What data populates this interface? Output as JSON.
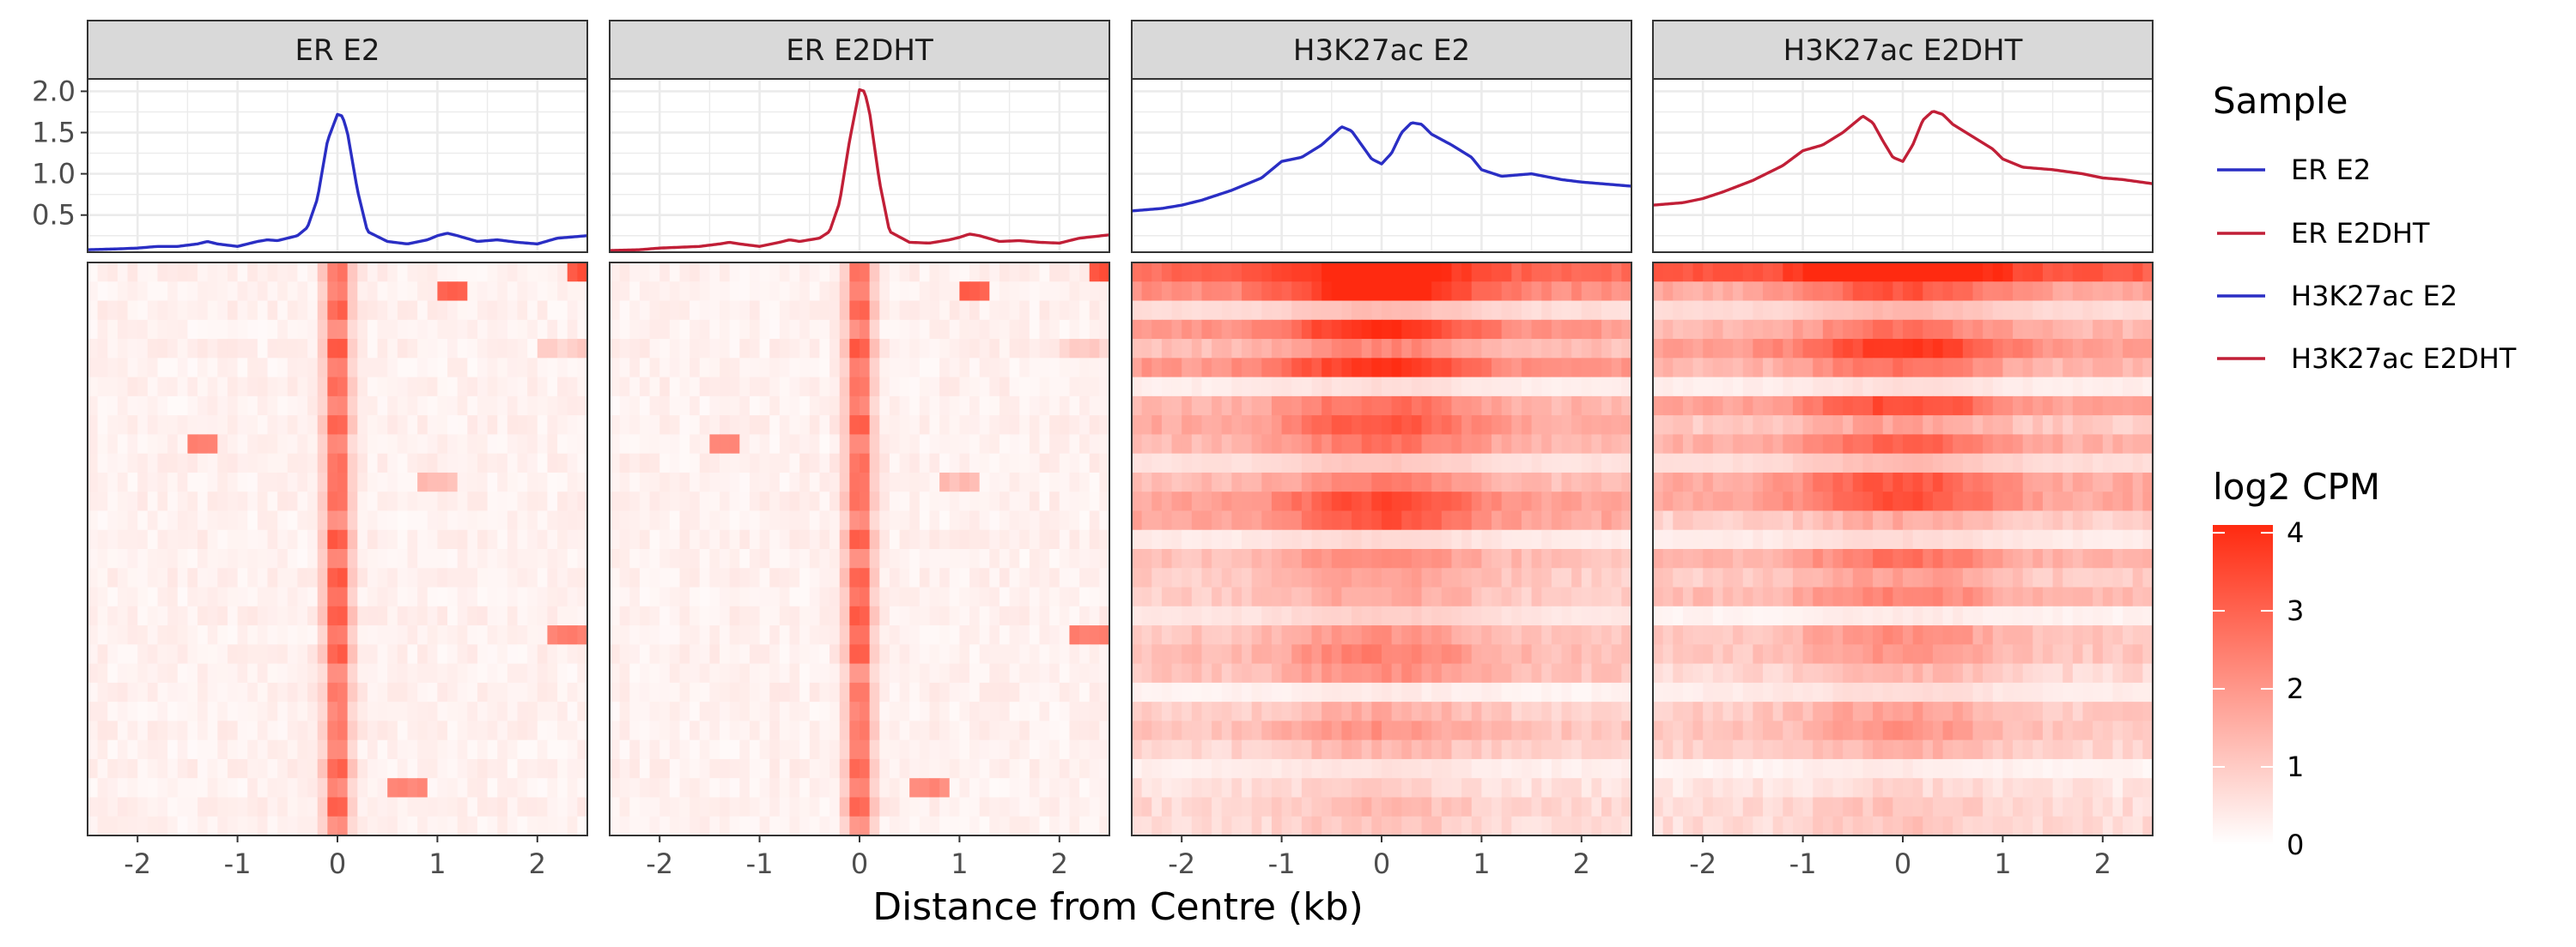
{
  "chart_data": {
    "type": "line+heatmap",
    "facets": [
      "ER E2",
      "ER E2DHT",
      "H3K27ac E2",
      "H3K27ac E2DHT"
    ],
    "x_axis": {
      "label": "Distance from Centre (kb)",
      "range": [
        -2.5,
        2.5
      ],
      "ticks": [
        -2,
        -1,
        0,
        1,
        2
      ],
      "tick_labels": [
        "-2",
        "-1",
        "0",
        "1",
        "2"
      ]
    },
    "profile_y_axis": {
      "range": [
        0.05,
        2.15
      ],
      "ticks": [
        0.5,
        1.0,
        1.5,
        2.0
      ],
      "tick_labels": [
        "0.5",
        "1.0",
        "1.5",
        "2.0"
      ]
    },
    "grid": true,
    "series": [
      {
        "name": "ER E2",
        "color": "#2a2ec4",
        "x": [
          -2.5,
          -2.2,
          -2.0,
          -1.8,
          -1.6,
          -1.4,
          -1.3,
          -1.2,
          -1.0,
          -0.8,
          -0.7,
          -0.6,
          -0.4,
          -0.3,
          -0.2,
          -0.1,
          0.0,
          0.05,
          0.1,
          0.2,
          0.3,
          0.5,
          0.7,
          0.9,
          1.0,
          1.1,
          1.2,
          1.4,
          1.6,
          1.8,
          2.0,
          2.2,
          2.5
        ],
        "y": [
          0.08,
          0.09,
          0.1,
          0.12,
          0.12,
          0.15,
          0.18,
          0.15,
          0.12,
          0.18,
          0.2,
          0.19,
          0.25,
          0.35,
          0.7,
          1.4,
          1.72,
          1.7,
          1.5,
          0.8,
          0.3,
          0.18,
          0.15,
          0.2,
          0.25,
          0.28,
          0.25,
          0.18,
          0.2,
          0.17,
          0.15,
          0.22,
          0.25
        ]
      },
      {
        "name": "ER E2DHT",
        "color": "#c11f37",
        "x": [
          -2.5,
          -2.2,
          -2.0,
          -1.8,
          -1.6,
          -1.4,
          -1.3,
          -1.2,
          -1.0,
          -0.8,
          -0.7,
          -0.6,
          -0.4,
          -0.3,
          -0.2,
          -0.1,
          0.0,
          0.05,
          0.1,
          0.2,
          0.3,
          0.5,
          0.7,
          0.9,
          1.0,
          1.1,
          1.2,
          1.4,
          1.6,
          1.8,
          2.0,
          2.2,
          2.5
        ],
        "y": [
          0.07,
          0.08,
          0.1,
          0.11,
          0.12,
          0.15,
          0.17,
          0.15,
          0.12,
          0.17,
          0.2,
          0.18,
          0.22,
          0.3,
          0.65,
          1.4,
          2.02,
          2.0,
          1.75,
          0.9,
          0.3,
          0.17,
          0.16,
          0.2,
          0.23,
          0.27,
          0.25,
          0.18,
          0.19,
          0.17,
          0.16,
          0.22,
          0.26
        ]
      },
      {
        "name": "H3K27ac E2",
        "color": "#2a2ec4",
        "x": [
          -2.5,
          -2.2,
          -2.0,
          -1.8,
          -1.5,
          -1.2,
          -1.0,
          -0.8,
          -0.6,
          -0.4,
          -0.3,
          -0.2,
          -0.1,
          0.0,
          0.1,
          0.2,
          0.3,
          0.4,
          0.5,
          0.7,
          0.9,
          1.0,
          1.2,
          1.5,
          1.8,
          2.0,
          2.2,
          2.5
        ],
        "y": [
          0.55,
          0.58,
          0.62,
          0.68,
          0.8,
          0.95,
          1.15,
          1.2,
          1.35,
          1.57,
          1.52,
          1.35,
          1.18,
          1.12,
          1.25,
          1.5,
          1.62,
          1.6,
          1.48,
          1.35,
          1.2,
          1.05,
          0.97,
          1.0,
          0.93,
          0.9,
          0.88,
          0.85
        ]
      },
      {
        "name": "H3K27ac E2DHT",
        "color": "#c11f37",
        "x": [
          -2.5,
          -2.2,
          -2.0,
          -1.8,
          -1.5,
          -1.2,
          -1.0,
          -0.8,
          -0.6,
          -0.4,
          -0.3,
          -0.2,
          -0.1,
          0.0,
          0.1,
          0.2,
          0.3,
          0.4,
          0.5,
          0.7,
          0.9,
          1.0,
          1.2,
          1.5,
          1.8,
          2.0,
          2.2,
          2.5
        ],
        "y": [
          0.62,
          0.65,
          0.7,
          0.78,
          0.92,
          1.1,
          1.28,
          1.35,
          1.5,
          1.7,
          1.62,
          1.4,
          1.2,
          1.15,
          1.35,
          1.65,
          1.76,
          1.72,
          1.6,
          1.45,
          1.3,
          1.18,
          1.08,
          1.05,
          1.0,
          0.95,
          0.93,
          0.88
        ]
      }
    ],
    "heatmap": {
      "color_scale": {
        "low": "#ffffff",
        "high": "#ff2a10"
      },
      "value_range": [
        0,
        4.1
      ],
      "rows": 30,
      "cols": 50
    },
    "legend": {
      "line_title": "Sample",
      "line_entries": [
        "ER E2",
        "ER E2DHT",
        "H3K27ac E2",
        "H3K27ac E2DHT"
      ],
      "fill_title": "log2 CPM",
      "fill_ticks": [
        0,
        1,
        2,
        3,
        4
      ],
      "fill_tick_labels": [
        "0",
        "1",
        "2",
        "3",
        "4"
      ],
      "placement": "right"
    }
  }
}
